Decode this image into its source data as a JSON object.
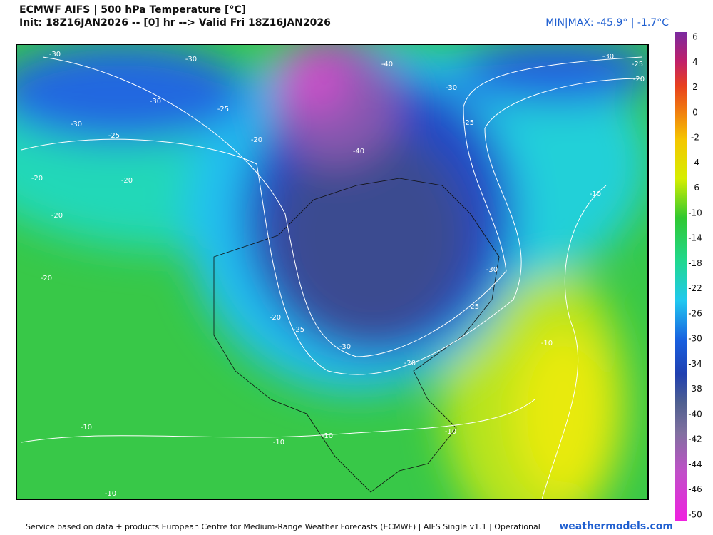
{
  "header": {
    "title": "ECMWF AIFS | 500 hPa Temperature [°C]",
    "init": "Init: 18Z16JAN2026 -- [0] hr --> Valid Fri 18Z16JAN2026",
    "minmax": "MIN|MAX: -45.9° | -1.7°C"
  },
  "colorbar": {
    "ticks": [
      "6",
      "4",
      "2",
      "0",
      "-2",
      "-4",
      "-6",
      "-10",
      "-14",
      "-18",
      "-22",
      "-26",
      "-30",
      "-34",
      "-38",
      "-40",
      "-42",
      "-44",
      "-46",
      "-50"
    ]
  },
  "contour_labels": [
    "-30",
    "-30",
    "-40",
    "-30",
    "-25",
    "-20",
    "-30",
    "-30",
    "-30",
    "-25",
    "-25",
    "-25",
    "-20",
    "-40",
    "-20",
    "-20",
    "-10",
    "-20",
    "-30",
    "-20",
    "-25",
    "-20",
    "-25",
    "-30",
    "-10",
    "-20",
    "-10",
    "-10",
    "-10",
    "-10",
    "-10"
  ],
  "footer": {
    "credit": "Service based on data + products European Centre for Medium-Range Weather Forecasts (ECMWF) | AIFS Single v1.1 | Operational",
    "site": "weathermodels.com"
  }
}
